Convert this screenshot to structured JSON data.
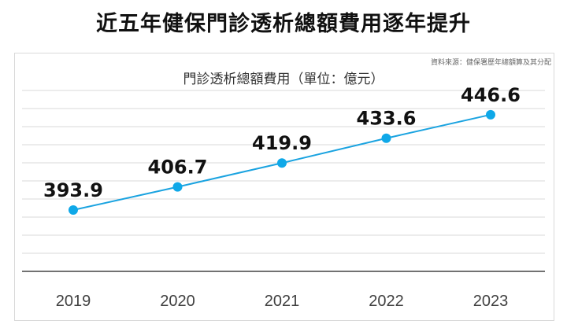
{
  "title": "近五年健保門診透析總額費用逐年提升",
  "source": "資料來源：健保署歷年總額算及其分配",
  "chart_data": {
    "type": "line",
    "title": "門診透析總額費用（單位：億元）",
    "categories": [
      "2019",
      "2020",
      "2021",
      "2022",
      "2023"
    ],
    "series": [
      {
        "name": "門診透析總額費用",
        "values": [
          393.9,
          406.7,
          419.9,
          433.6,
          446.6
        ]
      }
    ],
    "value_labels": [
      "393.9",
      "406.7",
      "419.9",
      "433.6",
      "446.6"
    ],
    "ylim": [
      360,
      460
    ],
    "ystep": 10,
    "grid": true,
    "xlabel": "",
    "ylabel": "",
    "line_color": "#1aa3e0",
    "marker_color": "#0fa8e8"
  }
}
